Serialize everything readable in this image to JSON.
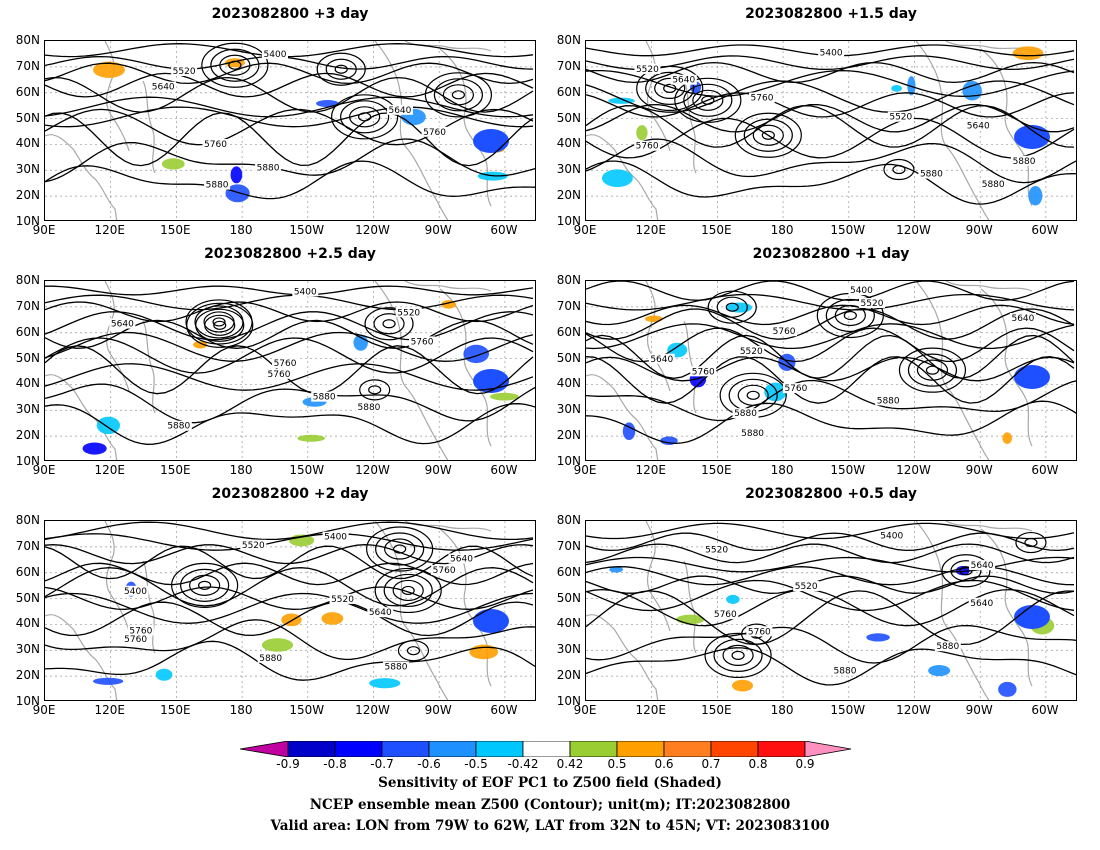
{
  "panels": [
    {
      "title": "2023082800 +3 day"
    },
    {
      "title": "2023082800 +1.5 day"
    },
    {
      "title": "2023082800 +2.5 day"
    },
    {
      "title": "2023082800 +1 day"
    },
    {
      "title": "2023082800 +2 day"
    },
    {
      "title": "2023082800 +0.5 day"
    }
  ],
  "axes": {
    "lat_labels": [
      "80N",
      "70N",
      "60N",
      "50N",
      "40N",
      "30N",
      "20N",
      "10N"
    ],
    "lon_labels": [
      "90E",
      "120E",
      "150E",
      "180",
      "150W",
      "120W",
      "90W",
      "60W"
    ]
  },
  "contour_labels": {
    "p0": [
      "5400",
      "5520",
      "5640",
      "5640",
      "5760",
      "5760",
      "5880",
      "5880"
    ],
    "p1": [
      "5400",
      "5520",
      "5640",
      "5760",
      "5520",
      "5640",
      "5760",
      "5880",
      "5880",
      "5880"
    ],
    "p2": [
      "5400",
      "5520",
      "5640",
      "5760",
      "5760",
      "5760",
      "5880",
      "5880",
      "5880"
    ],
    "p3": [
      "5400",
      "5520",
      "5640",
      "5760",
      "5520",
      "5640",
      "5760",
      "5760",
      "5880",
      "5880",
      "5880"
    ],
    "p4": [
      "5400",
      "5520",
      "5640",
      "5760",
      "5400",
      "5520",
      "5640",
      "5760",
      "5760",
      "5880",
      "5880"
    ],
    "p5": [
      "5400",
      "5520",
      "5640",
      "5520",
      "5640",
      "5760",
      "5760",
      "5880",
      "5880"
    ]
  },
  "colorbar": {
    "ticks": [
      "-0.9",
      "-0.8",
      "-0.7",
      "-0.6",
      "-0.5",
      "-0.42",
      "0.42",
      "0.5",
      "0.6",
      "0.7",
      "0.8",
      "0.9"
    ],
    "colors": [
      "#c000a0",
      "#0000c8",
      "#0000ff",
      "#1e50ff",
      "#1e90ff",
      "#00c8ff",
      "#ffffff",
      "#9acd32",
      "#ff9f00",
      "#ff7f20",
      "#ff4500",
      "#ff1010",
      "#ff90c0"
    ]
  },
  "caption": {
    "line1": "Sensitivity of EOF PC1 to Z500 field (Shaded)",
    "line2": "NCEP ensemble mean Z500 (Contour); unit(m); IT:2023082800",
    "line3": "Valid area: LON from 79W to 62W, LAT from 32N to 45N; VT: 2023083100"
  }
}
